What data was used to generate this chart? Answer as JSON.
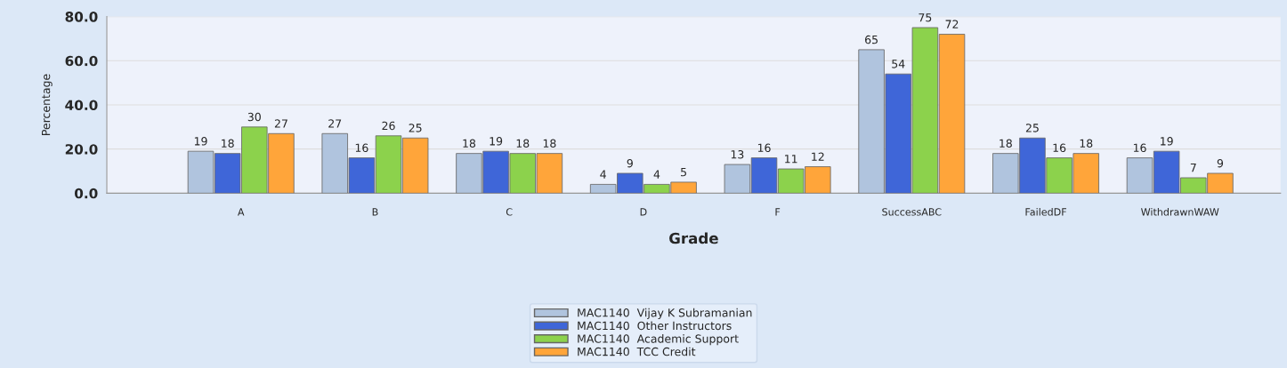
{
  "chart_data": {
    "type": "bar",
    "xlabel": "Grade",
    "ylabel": "Percentage",
    "categories": [
      "A",
      "B",
      "C",
      "D",
      "F",
      "SuccessABC",
      "FailedDF",
      "WithdrawnWAW"
    ],
    "series": [
      {
        "name": "MAC1140  Vijay K Subramanian",
        "color": "#b0c4de",
        "values": [
          19,
          27,
          18,
          4,
          13,
          65,
          18,
          16
        ]
      },
      {
        "name": "MAC1140  Other Instructors",
        "color": "#3f66d8",
        "values": [
          18,
          16,
          19,
          9,
          16,
          54,
          25,
          19
        ]
      },
      {
        "name": "MAC1140  Academic Support",
        "color": "#8cd24c",
        "values": [
          30,
          26,
          18,
          4,
          11,
          75,
          16,
          7
        ]
      },
      {
        "name": "MAC1140  TCC Credit",
        "color": "#ffa53a",
        "values": [
          27,
          25,
          18,
          5,
          12,
          72,
          18,
          9
        ]
      }
    ],
    "ylim": [
      0,
      80
    ],
    "yticks": [
      {
        "value": 0,
        "label": "0.0"
      },
      {
        "value": 20,
        "label": "20.0"
      },
      {
        "value": 40,
        "label": "40.0"
      },
      {
        "value": 60,
        "label": "60.0"
      },
      {
        "value": 80,
        "label": "80.0"
      }
    ],
    "grid": "y",
    "legend": "bottom",
    "data_labels": true
  }
}
